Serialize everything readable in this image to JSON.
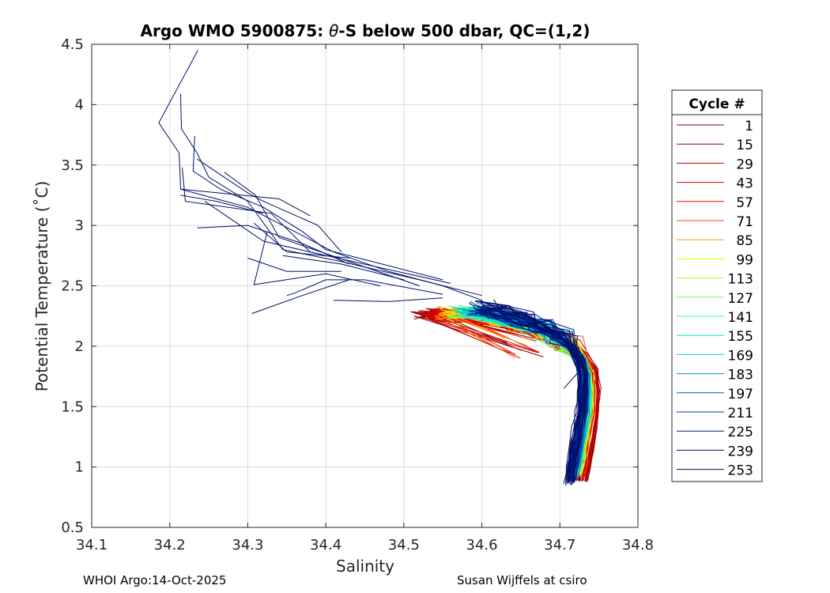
{
  "chart_data": {
    "type": "line",
    "title_prefix": "Argo WMO 5900875: ",
    "title_symbol": "θ",
    "title_suffix": "-S below 500 dbar,  QC=(1,2)",
    "xlabel": "Salinity",
    "ylabel": "Potential Temperature (˚C)",
    "xlim": [
      34.1,
      34.8
    ],
    "ylim": [
      0.5,
      4.5
    ],
    "xticks": [
      "34.1",
      "34.2",
      "34.3",
      "34.4",
      "34.5",
      "34.6",
      "34.7",
      "34.8"
    ],
    "yticks": [
      "0.5",
      "1",
      "1.5",
      "2",
      "2.5",
      "3",
      "3.5",
      "4",
      "4.5"
    ],
    "grid": true,
    "legend_title": "Cycle #",
    "legend_placement": "right",
    "series": [
      {
        "name": "1",
        "color": "#800000"
      },
      {
        "name": "15",
        "color": "#9b0000"
      },
      {
        "name": "29",
        "color": "#b80000"
      },
      {
        "name": "43",
        "color": "#d50000"
      },
      {
        "name": "57",
        "color": "#f20000"
      },
      {
        "name": "71",
        "color": "#ff4a00"
      },
      {
        "name": "85",
        "color": "#ff9a00"
      },
      {
        "name": "99",
        "color": "#f5f500"
      },
      {
        "name": "113",
        "color": "#a8ff30"
      },
      {
        "name": "127",
        "color": "#6cff6c"
      },
      {
        "name": "141",
        "color": "#30ffa8"
      },
      {
        "name": "155",
        "color": "#00e8dc"
      },
      {
        "name": "169",
        "color": "#00c8f0"
      },
      {
        "name": "183",
        "color": "#0095d0"
      },
      {
        "name": "197",
        "color": "#0066c0"
      },
      {
        "name": "211",
        "color": "#0036a0"
      },
      {
        "name": "225",
        "color": "#001f80"
      },
      {
        "name": "239",
        "color": "#000f70"
      },
      {
        "name": "253",
        "color": "#000f66"
      }
    ],
    "profile_shape": {
      "warm_red": [
        [
          34.52,
          2.26
        ],
        [
          34.57,
          2.25
        ],
        [
          34.62,
          2.21
        ],
        [
          34.66,
          2.17
        ],
        [
          34.7,
          2.08
        ],
        [
          34.73,
          1.95
        ],
        [
          34.745,
          1.8
        ],
        [
          34.748,
          1.6
        ],
        [
          34.745,
          1.4
        ],
        [
          34.74,
          1.2
        ],
        [
          34.735,
          1.0
        ],
        [
          34.73,
          0.88
        ]
      ],
      "cyan": [
        [
          34.57,
          2.28
        ],
        [
          34.62,
          2.24
        ],
        [
          34.66,
          2.18
        ],
        [
          34.7,
          2.07
        ],
        [
          34.725,
          1.92
        ],
        [
          34.735,
          1.75
        ],
        [
          34.735,
          1.5
        ],
        [
          34.73,
          1.3
        ],
        [
          34.725,
          1.1
        ],
        [
          34.72,
          0.95
        ]
      ],
      "blue": [
        [
          34.6,
          2.33
        ],
        [
          34.64,
          2.26
        ],
        [
          34.68,
          2.17
        ],
        [
          34.71,
          2.05
        ],
        [
          34.725,
          1.9
        ],
        [
          34.73,
          1.75
        ],
        [
          34.728,
          1.5
        ],
        [
          34.722,
          1.3
        ],
        [
          34.717,
          1.1
        ],
        [
          34.712,
          0.86
        ]
      ],
      "dark_upper": [
        [
          [
            34.236,
            4.45
          ],
          [
            34.186,
            3.85
          ],
          [
            34.212,
            3.6
          ],
          [
            34.214,
            3.3
          ],
          [
            34.3,
            3.15
          ],
          [
            34.36,
            2.95
          ],
          [
            34.41,
            2.78
          ],
          [
            34.48,
            2.62
          ],
          [
            34.55,
            2.5
          ],
          [
            34.6,
            2.38
          ]
        ],
        [
          [
            34.214,
            4.09
          ],
          [
            34.215,
            3.8
          ],
          [
            34.235,
            3.6
          ],
          [
            34.25,
            3.4
          ],
          [
            34.3,
            3.2
          ],
          [
            34.345,
            2.8
          ],
          [
            34.42,
            2.7
          ],
          [
            34.52,
            2.55
          ],
          [
            34.6,
            2.42
          ]
        ],
        [
          [
            34.232,
            3.74
          ],
          [
            34.23,
            3.45
          ],
          [
            34.265,
            3.3
          ],
          [
            34.32,
            3.15
          ],
          [
            34.37,
            2.95
          ],
          [
            34.4,
            2.8
          ],
          [
            34.46,
            2.7
          ],
          [
            34.55,
            2.55
          ]
        ],
        [
          [
            34.216,
            3.48
          ],
          [
            34.22,
            3.2
          ],
          [
            34.33,
            3.1
          ],
          [
            34.38,
            2.78
          ],
          [
            34.47,
            2.65
          ],
          [
            34.56,
            2.52
          ]
        ],
        [
          [
            34.27,
            3.44
          ],
          [
            34.31,
            3.25
          ],
          [
            34.34,
            2.9
          ],
          [
            34.43,
            2.7
          ],
          [
            34.52,
            2.5
          ]
        ],
        [
          [
            34.235,
            3.55
          ],
          [
            34.3,
            3.27
          ],
          [
            34.32,
            3.2
          ],
          [
            34.39,
            3.0
          ],
          [
            34.42,
            2.78
          ]
        ],
        [
          [
            34.235,
            2.98
          ],
          [
            34.3,
            3.0
          ],
          [
            34.37,
            2.85
          ],
          [
            34.43,
            2.68
          ]
        ],
        [
          [
            34.215,
            3.3
          ],
          [
            34.34,
            3.22
          ],
          [
            34.38,
            3.08
          ]
        ],
        [
          [
            34.214,
            3.25
          ],
          [
            34.26,
            3.2
          ],
          [
            34.32,
            3.1
          ]
        ],
        [
          [
            34.245,
            3.2
          ],
          [
            34.32,
            2.87
          ],
          [
            34.4,
            2.75
          ]
        ],
        [
          [
            34.308,
            3.02
          ],
          [
            34.35,
            2.78
          ],
          [
            34.43,
            2.73
          ]
        ],
        [
          [
            34.325,
            2.95
          ],
          [
            34.308,
            2.51
          ],
          [
            34.4,
            2.6
          ],
          [
            34.47,
            2.5
          ]
        ],
        [
          [
            34.35,
            2.42
          ],
          [
            34.36,
            2.44
          ],
          [
            34.4,
            2.55
          ],
          [
            34.45,
            2.55
          ],
          [
            34.55,
            2.43
          ]
        ],
        [
          [
            34.305,
            2.27
          ],
          [
            34.37,
            2.42
          ],
          [
            34.43,
            2.55
          ]
        ],
        [
          [
            34.41,
            2.38
          ],
          [
            34.48,
            2.37
          ],
          [
            34.55,
            2.4
          ]
        ],
        [
          [
            34.345,
            2.75
          ],
          [
            34.42,
            2.68
          ],
          [
            34.5,
            2.55
          ]
        ],
        [
          [
            34.3,
            2.73
          ],
          [
            34.35,
            2.62
          ],
          [
            34.42,
            2.62
          ]
        ],
        [
          [
            34.723,
            1.78
          ],
          [
            34.705,
            1.65
          ]
        ]
      ]
    }
  },
  "footer": {
    "left": "WHOI Argo:14-Oct-2025",
    "right": "Susan Wijffels at csiro"
  }
}
